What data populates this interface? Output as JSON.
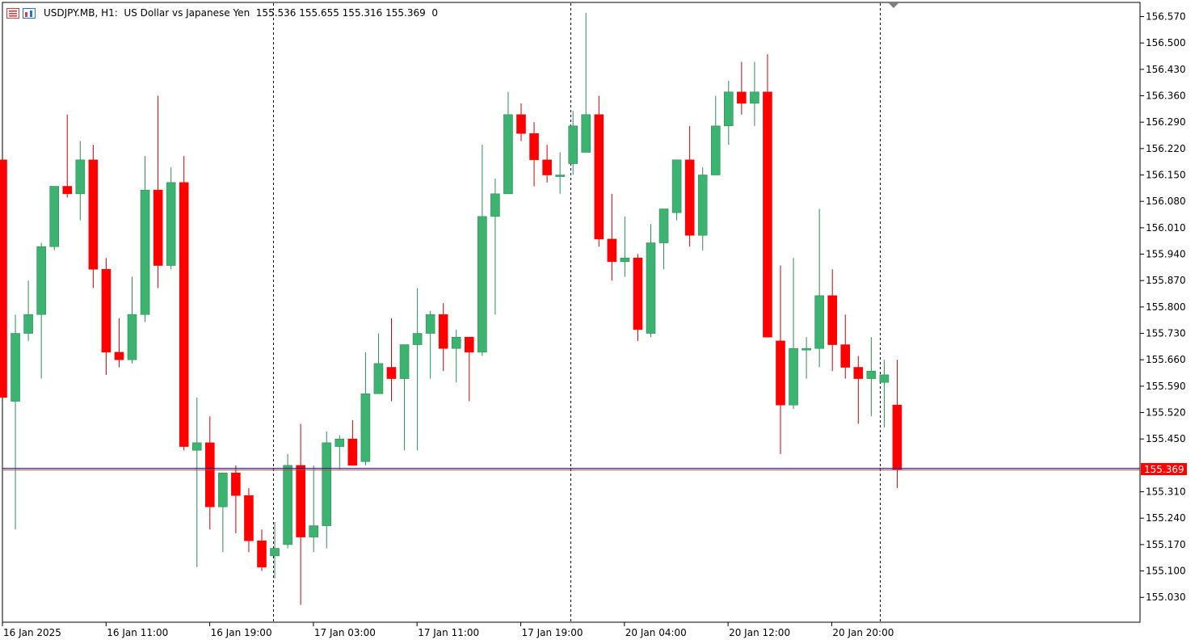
{
  "header": {
    "symbol": "USDJPY.MB",
    "timeframe": "H1",
    "description": "US Dollar vs Japanese Yen",
    "ohlc": "155.536 155.655 155.316 155.369",
    "extra": "0",
    "title_line": "USDJPY.MB, H1:  US Dollar vs Japanese Yen  155.536 155.655 155.316 155.369  0"
  },
  "colors": {
    "bull": "#3cb371",
    "bear": "#ff0000",
    "wick_bull": "#2e8b57",
    "wick_bear": "#cc0000",
    "bid_line": "#1e1ea8",
    "ask_line": "#cc3333",
    "price_label_bg": "#ff0000",
    "price_label_fg": "#ffffff",
    "axis": "#000000",
    "separator": "#000000"
  },
  "chart_data": {
    "type": "candlestick",
    "instrument": "USDJPY.MB",
    "timeframe": "H1",
    "ylim": [
      154.97,
      156.6
    ],
    "y_ticks": [
      "156.570",
      "156.500",
      "156.430",
      "156.360",
      "156.290",
      "156.220",
      "156.150",
      "156.080",
      "156.010",
      "155.940",
      "155.870",
      "155.800",
      "155.730",
      "155.660",
      "155.590",
      "155.520",
      "155.450",
      "155.380",
      "155.310",
      "155.240",
      "155.170",
      "155.100",
      "155.030"
    ],
    "x_ticks": [
      "16 Jan 2025",
      "16 Jan 11:00",
      "16 Jan 19:00",
      "17 Jan 03:00",
      "17 Jan 11:00",
      "17 Jan 19:00",
      "20 Jan 04:00",
      "20 Jan 12:00",
      "20 Jan 20:00"
    ],
    "current_price": "155.369",
    "candles": [
      {
        "o": 156.19,
        "h": 156.19,
        "l": 155.56,
        "c": 155.56
      },
      {
        "o": 155.55,
        "h": 155.78,
        "l": 155.21,
        "c": 155.73
      },
      {
        "o": 155.73,
        "h": 155.87,
        "l": 155.71,
        "c": 155.78
      },
      {
        "o": 155.78,
        "h": 155.97,
        "l": 155.61,
        "c": 155.96
      },
      {
        "o": 155.96,
        "h": 156.12,
        "l": 155.95,
        "c": 156.12
      },
      {
        "o": 156.12,
        "h": 156.31,
        "l": 156.09,
        "c": 156.1
      },
      {
        "o": 156.1,
        "h": 156.24,
        "l": 156.03,
        "c": 156.19
      },
      {
        "o": 156.19,
        "h": 156.23,
        "l": 155.85,
        "c": 155.9
      },
      {
        "o": 155.9,
        "h": 155.93,
        "l": 155.62,
        "c": 155.68
      },
      {
        "o": 155.68,
        "h": 155.77,
        "l": 155.64,
        "c": 155.66
      },
      {
        "o": 155.66,
        "h": 155.88,
        "l": 155.65,
        "c": 155.78
      },
      {
        "o": 155.78,
        "h": 156.2,
        "l": 155.76,
        "c": 156.11
      },
      {
        "o": 156.11,
        "h": 156.36,
        "l": 155.85,
        "c": 155.91
      },
      {
        "o": 155.91,
        "h": 156.17,
        "l": 155.9,
        "c": 156.13
      },
      {
        "o": 156.13,
        "h": 156.2,
        "l": 155.42,
        "c": 155.43
      },
      {
        "o": 155.42,
        "h": 155.56,
        "l": 155.11,
        "c": 155.44
      },
      {
        "o": 155.44,
        "h": 155.51,
        "l": 155.21,
        "c": 155.27
      },
      {
        "o": 155.27,
        "h": 155.35,
        "l": 155.15,
        "c": 155.36
      },
      {
        "o": 155.36,
        "h": 155.38,
        "l": 155.2,
        "c": 155.3
      },
      {
        "o": 155.3,
        "h": 155.32,
        "l": 155.15,
        "c": 155.18
      },
      {
        "o": 155.18,
        "h": 155.21,
        "l": 155.1,
        "c": 155.11
      },
      {
        "o": 155.14,
        "h": 155.23,
        "l": 155.08,
        "c": 155.16
      },
      {
        "o": 155.17,
        "h": 155.41,
        "l": 155.16,
        "c": 155.38
      },
      {
        "o": 155.38,
        "h": 155.49,
        "l": 155.01,
        "c": 155.19
      },
      {
        "o": 155.19,
        "h": 155.38,
        "l": 155.15,
        "c": 155.22
      },
      {
        "o": 155.22,
        "h": 155.47,
        "l": 155.16,
        "c": 155.44
      },
      {
        "o": 155.43,
        "h": 155.46,
        "l": 155.37,
        "c": 155.45
      },
      {
        "o": 155.45,
        "h": 155.5,
        "l": 155.38,
        "c": 155.38
      },
      {
        "o": 155.39,
        "h": 155.68,
        "l": 155.38,
        "c": 155.57
      },
      {
        "o": 155.57,
        "h": 155.73,
        "l": 155.57,
        "c": 155.65
      },
      {
        "o": 155.64,
        "h": 155.77,
        "l": 155.55,
        "c": 155.61
      },
      {
        "o": 155.61,
        "h": 155.7,
        "l": 155.42,
        "c": 155.7
      },
      {
        "o": 155.7,
        "h": 155.85,
        "l": 155.42,
        "c": 155.73
      },
      {
        "o": 155.73,
        "h": 155.79,
        "l": 155.61,
        "c": 155.78
      },
      {
        "o": 155.78,
        "h": 155.81,
        "l": 155.63,
        "c": 155.69
      },
      {
        "o": 155.69,
        "h": 155.74,
        "l": 155.6,
        "c": 155.72
      },
      {
        "o": 155.72,
        "h": 155.72,
        "l": 155.55,
        "c": 155.68
      },
      {
        "o": 155.68,
        "h": 156.23,
        "l": 155.67,
        "c": 156.04
      },
      {
        "o": 156.04,
        "h": 156.14,
        "l": 155.78,
        "c": 156.1
      },
      {
        "o": 156.1,
        "h": 156.37,
        "l": 156.1,
        "c": 156.31
      },
      {
        "o": 156.31,
        "h": 156.34,
        "l": 156.24,
        "c": 156.26
      },
      {
        "o": 156.26,
        "h": 156.29,
        "l": 156.12,
        "c": 156.19
      },
      {
        "o": 156.19,
        "h": 156.23,
        "l": 156.13,
        "c": 156.15
      },
      {
        "o": 156.15,
        "h": 156.21,
        "l": 156.1,
        "c": 156.15
      },
      {
        "o": 156.18,
        "h": 156.32,
        "l": 156.15,
        "c": 156.28
      },
      {
        "o": 156.21,
        "h": 156.58,
        "l": 156.21,
        "c": 156.31
      },
      {
        "o": 156.31,
        "h": 156.36,
        "l": 155.96,
        "c": 155.98
      },
      {
        "o": 155.98,
        "h": 156.1,
        "l": 155.87,
        "c": 155.92
      },
      {
        "o": 155.92,
        "h": 156.04,
        "l": 155.88,
        "c": 155.93
      },
      {
        "o": 155.93,
        "h": 155.94,
        "l": 155.71,
        "c": 155.74
      },
      {
        "o": 155.73,
        "h": 156.02,
        "l": 155.72,
        "c": 155.97
      },
      {
        "o": 155.97,
        "h": 156.06,
        "l": 155.9,
        "c": 156.06
      },
      {
        "o": 156.05,
        "h": 156.19,
        "l": 156.03,
        "c": 156.19
      },
      {
        "o": 156.19,
        "h": 156.28,
        "l": 155.96,
        "c": 155.99
      },
      {
        "o": 155.99,
        "h": 156.17,
        "l": 155.95,
        "c": 156.15
      },
      {
        "o": 156.15,
        "h": 156.36,
        "l": 156.15,
        "c": 156.28
      },
      {
        "o": 156.28,
        "h": 156.4,
        "l": 156.23,
        "c": 156.37
      },
      {
        "o": 156.37,
        "h": 156.45,
        "l": 156.31,
        "c": 156.34
      },
      {
        "o": 156.34,
        "h": 156.45,
        "l": 156.28,
        "c": 156.37
      },
      {
        "o": 156.37,
        "h": 156.47,
        "l": 155.72,
        "c": 155.72
      },
      {
        "o": 155.71,
        "h": 155.91,
        "l": 155.41,
        "c": 155.54
      },
      {
        "o": 155.54,
        "h": 155.93,
        "l": 155.53,
        "c": 155.69
      },
      {
        "o": 155.69,
        "h": 155.72,
        "l": 155.61,
        "c": 155.69
      },
      {
        "o": 155.69,
        "h": 156.06,
        "l": 155.64,
        "c": 155.83
      },
      {
        "o": 155.83,
        "h": 155.9,
        "l": 155.63,
        "c": 155.7
      },
      {
        "o": 155.7,
        "h": 155.78,
        "l": 155.61,
        "c": 155.64
      },
      {
        "o": 155.64,
        "h": 155.67,
        "l": 155.49,
        "c": 155.61
      },
      {
        "o": 155.61,
        "h": 155.72,
        "l": 155.51,
        "c": 155.63
      },
      {
        "o": 155.6,
        "h": 155.66,
        "l": 155.48,
        "c": 155.62
      },
      {
        "o": 155.54,
        "h": 155.66,
        "l": 155.32,
        "c": 155.37
      }
    ]
  }
}
